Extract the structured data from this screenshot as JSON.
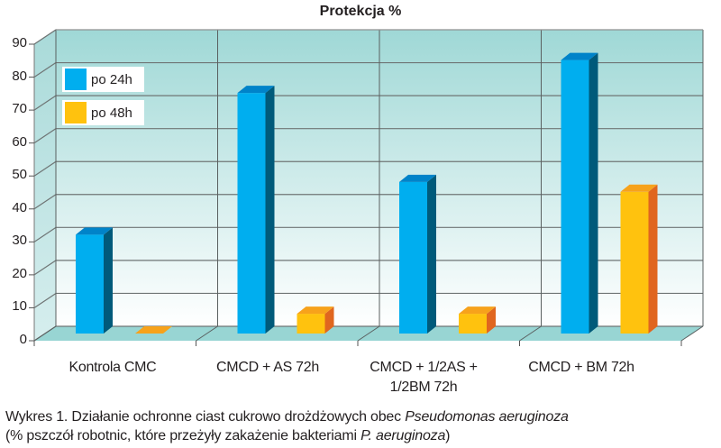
{
  "chart_data": {
    "type": "bar",
    "title": "Protekcja %",
    "xlabel": "",
    "ylabel": "",
    "ylim": [
      0,
      90
    ],
    "yticks": [
      0,
      10,
      20,
      30,
      40,
      50,
      60,
      70,
      80,
      90
    ],
    "grid": true,
    "legend_position": "top-left inside",
    "categories": [
      "Kontrola CMC",
      "CMCD + AS 72h",
      "CMCD + 1/2AS + 1/2BM 72h",
      "CMCD + BM 72h"
    ],
    "series": [
      {
        "name": "po 24h",
        "color": "#00aeef",
        "values": [
          30,
          73,
          46,
          83
        ]
      },
      {
        "name": "po 48h",
        "color": "#ffc20e",
        "values": [
          0,
          6,
          6,
          43
        ]
      }
    ]
  },
  "chart": {
    "title": "Protekcja %",
    "yticks": [
      "0",
      "10",
      "20",
      "30",
      "40",
      "50",
      "60",
      "70",
      "80",
      "90"
    ],
    "legend": [
      {
        "label": "po 24h",
        "color": "#00aeef"
      },
      {
        "label": "po 48h",
        "color": "#ffc20e"
      }
    ],
    "categories": [
      {
        "line1": "Kontrola CMC",
        "line2": ""
      },
      {
        "line1": "CMCD + AS 72h",
        "line2": ""
      },
      {
        "line1": "CMCD + 1/2AS +",
        "line2": "1/2BM 72h"
      },
      {
        "line1": "CMCD + BM 72h",
        "line2": ""
      }
    ]
  },
  "caption": {
    "line1_prefix": "Wykres 1. Działanie ochronne ciast cukrowo drożdżowych obec ",
    "line1_italic": "Pseudomonas aeruginoza",
    "line2_prefix": "(% pszczół robotnic, które przeżyły zakażenie bakteriami ",
    "line2_italic": "P. aeruginoza",
    "line2_suffix": ")"
  }
}
